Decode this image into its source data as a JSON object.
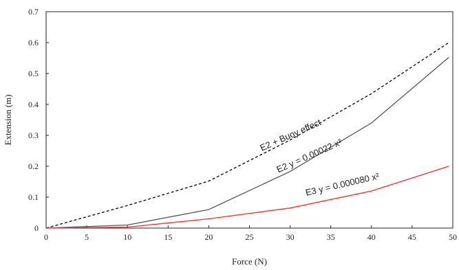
{
  "chart_data": {
    "type": "line",
    "xlabel": "Force (N)",
    "ylabel": "Extension (m)",
    "xlim": [
      0,
      50
    ],
    "ylim": [
      0,
      0.7
    ],
    "xticks": [
      "0",
      "5",
      "10",
      "15",
      "20",
      "25",
      "30",
      "35",
      "40",
      "45",
      "50"
    ],
    "yticks": [
      "0",
      "0.1",
      "0.2",
      "0.3",
      "0.4",
      "0.5",
      "0.6",
      "0.7"
    ],
    "grid": false,
    "series": [
      {
        "color": "#000000",
        "style": "dashed",
        "x": [
          0,
          10,
          20,
          30,
          40,
          49.5
        ],
        "y": [
          0,
          0.073,
          0.152,
          0.285,
          0.435,
          0.6
        ]
      },
      {
        "color": "#555555",
        "style": "solid",
        "x": [
          0,
          10,
          20,
          30,
          40,
          49.5
        ],
        "y": [
          0,
          0.01,
          0.06,
          0.183,
          0.34,
          0.552
        ]
      },
      {
        "color": "#ff2a2a",
        "style": "solid",
        "x": [
          0,
          10,
          20,
          30,
          40,
          49.5
        ],
        "y": [
          0,
          0.003,
          0.03,
          0.065,
          0.12,
          0.2
        ]
      }
    ],
    "annotations": [
      {
        "text": "E2   + Buoy effect",
        "x": 30.2,
        "y": 0.292,
        "angle": -24
      },
      {
        "text": "E2  y = 0.00022 x²",
        "x": 32.5,
        "y": 0.225,
        "angle": -24
      },
      {
        "text": "E3  y = 0.000080 x²",
        "x": 36.5,
        "y": 0.132,
        "angle": -13
      }
    ]
  }
}
